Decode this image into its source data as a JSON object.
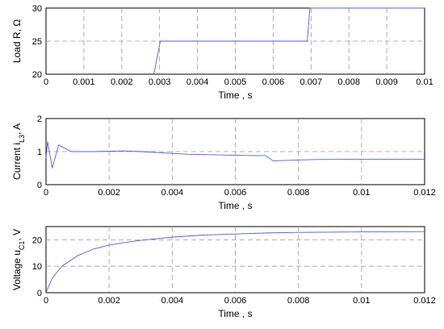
{
  "chart_data": [
    {
      "type": "line",
      "xlabel": "Time , s",
      "ylabel": "Load R, Ω",
      "xlim": [
        0,
        0.01
      ],
      "ylim": [
        20,
        30
      ],
      "xticks": [
        "0",
        "0.001",
        "0.002",
        "0.003",
        "0.004",
        "0.005",
        "0.006",
        "0.007",
        "0.008",
        "0.009",
        "0.01"
      ],
      "yticks": [
        "20",
        "25",
        "30"
      ],
      "grid": true,
      "series": [
        {
          "x": [
            0.00285,
            0.00302,
            0.0069,
            0.00697,
            0.01
          ],
          "y": [
            20,
            25,
            25,
            30,
            30
          ]
        }
      ]
    },
    {
      "type": "line",
      "xlabel": "Time , s",
      "ylabel_main": "Current i",
      "ylabel_sub": "L3",
      "ylabel_tail": ", A",
      "xlim": [
        0,
        0.012
      ],
      "ylim": [
        0,
        2
      ],
      "xticks": [
        "0",
        "0.002",
        "0.004",
        "0.006",
        "0.008",
        "0.01",
        "0.012"
      ],
      "yticks": [
        "0",
        "1",
        "2"
      ],
      "grid": true,
      "series": [
        {
          "x": [
            0,
            5e-05,
            0.0002,
            0.0004,
            0.0008,
            0.0015,
            0.0025,
            0.003,
            0.0045,
            0.0055,
            0.0065,
            0.00695,
            0.0072,
            0.0085,
            0.01,
            0.012
          ],
          "y": [
            0.8,
            1.3,
            0.5,
            1.2,
            1.0,
            1.0,
            1.02,
            1.0,
            0.92,
            0.9,
            0.88,
            0.88,
            0.72,
            0.76,
            0.77,
            0.77
          ]
        }
      ]
    },
    {
      "type": "line",
      "xlabel": "Time , s",
      "ylabel_main": "Voltage u",
      "ylabel_sub": "C1",
      "ylabel_tail": ", V",
      "xlim": [
        0,
        0.012
      ],
      "ylim": [
        0,
        25
      ],
      "xticks": [
        "0",
        "0.002",
        "0.004",
        "0.006",
        "0.008",
        "0.01",
        "0.012"
      ],
      "yticks": [
        "0",
        "10",
        "20"
      ],
      "grid": true,
      "series": [
        {
          "x": [
            0,
            0.0002,
            0.0005,
            0.001,
            0.0015,
            0.002,
            0.0025,
            0.003,
            0.004,
            0.005,
            0.006,
            0.007,
            0.008,
            0.01,
            0.012
          ],
          "y": [
            0,
            5.5,
            10,
            14,
            16.5,
            18,
            19,
            19.8,
            21,
            21.8,
            22.2,
            22.6,
            22.8,
            23.0,
            23.1
          ]
        }
      ]
    }
  ]
}
